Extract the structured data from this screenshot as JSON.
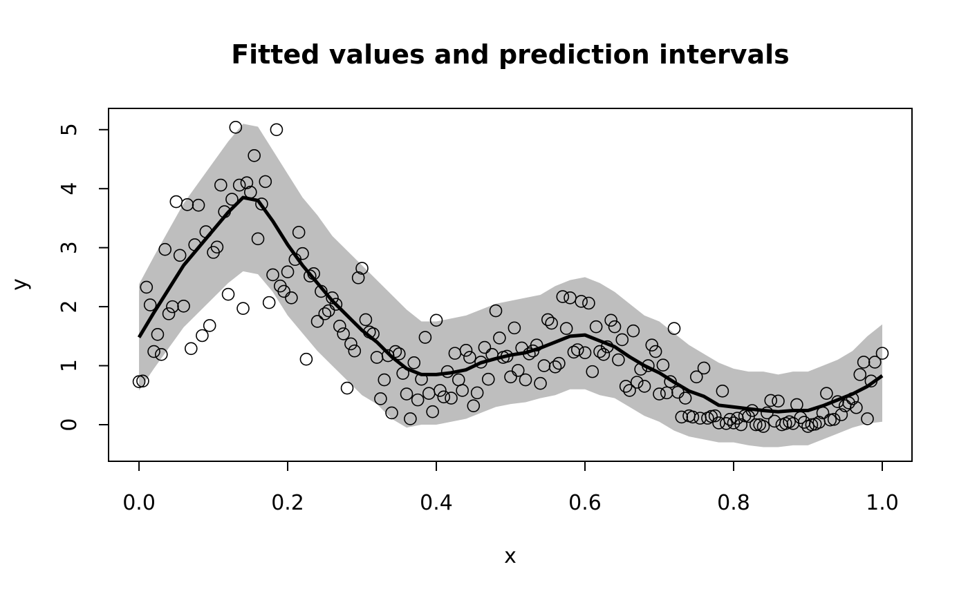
{
  "chart_data": {
    "type": "scatter",
    "title": "Fitted values and prediction intervals",
    "xlabel": "x",
    "ylabel": "y",
    "xlim": [
      -0.041,
      1.04
    ],
    "ylim": [
      -0.62,
      5.36
    ],
    "xticks": [
      {
        "value": 0,
        "label": "0.0"
      },
      0.2,
      0.4,
      0.6,
      0.8,
      {
        "value": 1,
        "label": "1.0"
      }
    ],
    "yticks": [
      0,
      1,
      2,
      3,
      4,
      5
    ],
    "band": {
      "color": "#bebebe",
      "x": [
        0,
        0.02,
        0.04,
        0.06,
        0.08,
        0.1,
        0.12,
        0.14,
        0.16,
        0.18,
        0.2,
        0.22,
        0.24,
        0.26,
        0.28,
        0.3,
        0.32,
        0.34,
        0.36,
        0.38,
        0.4,
        0.42,
        0.44,
        0.46,
        0.48,
        0.5,
        0.52,
        0.54,
        0.56,
        0.58,
        0.6,
        0.62,
        0.64,
        0.66,
        0.68,
        0.7,
        0.72,
        0.74,
        0.76,
        0.78,
        0.8,
        0.82,
        0.84,
        0.86,
        0.88,
        0.9,
        0.92,
        0.94,
        0.96,
        0.98,
        1
      ],
      "lower": [
        0.58,
        0.95,
        1.3,
        1.65,
        1.9,
        2.15,
        2.4,
        2.6,
        2.55,
        2.25,
        1.85,
        1.55,
        1.25,
        1.0,
        0.75,
        0.5,
        0.35,
        0.1,
        -0.05,
        0.0,
        0.0,
        0.05,
        0.1,
        0.2,
        0.3,
        0.35,
        0.38,
        0.45,
        0.5,
        0.6,
        0.6,
        0.5,
        0.45,
        0.3,
        0.15,
        0.05,
        -0.1,
        -0.2,
        -0.25,
        -0.3,
        -0.3,
        -0.35,
        -0.38,
        -0.38,
        -0.35,
        -0.35,
        -0.25,
        -0.15,
        -0.05,
        0.02,
        0.05
      ],
      "upper": [
        2.38,
        2.85,
        3.3,
        3.75,
        4.1,
        4.45,
        4.8,
        5.1,
        5.05,
        4.65,
        4.25,
        3.85,
        3.55,
        3.2,
        2.95,
        2.7,
        2.45,
        2.2,
        1.95,
        1.75,
        1.75,
        1.8,
        1.85,
        1.95,
        2.05,
        2.1,
        2.15,
        2.2,
        2.35,
        2.45,
        2.5,
        2.4,
        2.25,
        2.05,
        1.85,
        1.75,
        1.55,
        1.35,
        1.2,
        1.05,
        0.95,
        0.9,
        0.9,
        0.85,
        0.9,
        0.9,
        1.0,
        1.1,
        1.25,
        1.5,
        1.7
      ]
    },
    "fit": {
      "color": "#000000",
      "x": [
        0,
        0.02,
        0.04,
        0.06,
        0.08,
        0.1,
        0.12,
        0.14,
        0.16,
        0.18,
        0.2,
        0.22,
        0.24,
        0.26,
        0.28,
        0.3,
        0.32,
        0.34,
        0.36,
        0.38,
        0.4,
        0.42,
        0.44,
        0.46,
        0.48,
        0.5,
        0.52,
        0.54,
        0.56,
        0.58,
        0.6,
        0.62,
        0.64,
        0.66,
        0.68,
        0.7,
        0.72,
        0.74,
        0.76,
        0.78,
        0.8,
        0.82,
        0.84,
        0.86,
        0.88,
        0.9,
        0.92,
        0.94,
        0.96,
        0.98,
        1
      ],
      "values": [
        1.48,
        1.9,
        2.3,
        2.7,
        3.0,
        3.3,
        3.6,
        3.85,
        3.8,
        3.45,
        3.05,
        2.7,
        2.4,
        2.1,
        1.85,
        1.6,
        1.4,
        1.15,
        0.95,
        0.85,
        0.85,
        0.88,
        0.93,
        1.05,
        1.12,
        1.18,
        1.22,
        1.3,
        1.4,
        1.5,
        1.52,
        1.42,
        1.32,
        1.15,
        1.0,
        0.88,
        0.72,
        0.57,
        0.48,
        0.33,
        0.3,
        0.27,
        0.24,
        0.22,
        0.24,
        0.24,
        0.32,
        0.42,
        0.52,
        0.65,
        0.83
      ]
    },
    "points": {
      "color": "#000000",
      "x": [
        0,
        0.005,
        0.01,
        0.015,
        0.02,
        0.025,
        0.03,
        0.035,
        0.04,
        0.045,
        0.05,
        0.055,
        0.06,
        0.065,
        0.07,
        0.075,
        0.08,
        0.085,
        0.09,
        0.095,
        0.1,
        0.105,
        0.11,
        0.115,
        0.12,
        0.125,
        0.13,
        0.135,
        0.14,
        0.145,
        0.15,
        0.155,
        0.16,
        0.165,
        0.17,
        0.175,
        0.18,
        0.185,
        0.19,
        0.195,
        0.2,
        0.205,
        0.21,
        0.215,
        0.22,
        0.225,
        0.23,
        0.235,
        0.24,
        0.245,
        0.25,
        0.255,
        0.26,
        0.265,
        0.27,
        0.275,
        0.28,
        0.285,
        0.29,
        0.295,
        0.3,
        0.305,
        0.31,
        0.315,
        0.32,
        0.325,
        0.33,
        0.335,
        0.34,
        0.345,
        0.35,
        0.355,
        0.36,
        0.365,
        0.37,
        0.375,
        0.38,
        0.385,
        0.39,
        0.395,
        0.4,
        0.405,
        0.41,
        0.415,
        0.42,
        0.425,
        0.43,
        0.435,
        0.44,
        0.445,
        0.45,
        0.455,
        0.46,
        0.465,
        0.47,
        0.475,
        0.48,
        0.485,
        0.49,
        0.495,
        0.5,
        0.505,
        0.51,
        0.515,
        0.52,
        0.525,
        0.53,
        0.535,
        0.54,
        0.545,
        0.55,
        0.555,
        0.56,
        0.565,
        0.57,
        0.575,
        0.58,
        0.585,
        0.59,
        0.595,
        0.6,
        0.605,
        0.61,
        0.615,
        0.62,
        0.625,
        0.63,
        0.635,
        0.64,
        0.645,
        0.65,
        0.655,
        0.66,
        0.665,
        0.67,
        0.675,
        0.68,
        0.685,
        0.69,
        0.695,
        0.7,
        0.705,
        0.71,
        0.715,
        0.72,
        0.725,
        0.73,
        0.735,
        0.74,
        0.745,
        0.75,
        0.755,
        0.76,
        0.765,
        0.77,
        0.775,
        0.78,
        0.785,
        0.79,
        0.795,
        0.8,
        0.805,
        0.81,
        0.815,
        0.82,
        0.825,
        0.83,
        0.835,
        0.84,
        0.845,
        0.85,
        0.855,
        0.86,
        0.865,
        0.87,
        0.875,
        0.88,
        0.885,
        0.89,
        0.895,
        0.9,
        0.905,
        0.91,
        0.915,
        0.92,
        0.925,
        0.93,
        0.935,
        0.94,
        0.945,
        0.95,
        0.955,
        0.96,
        0.965,
        0.97,
        0.975,
        0.98,
        0.985,
        0.99,
        1
      ],
      "values": [
        0.73,
        0.74,
        2.33,
        2.03,
        1.24,
        1.53,
        1.19,
        2.97,
        1.88,
        2.0,
        3.78,
        2.87,
        2.01,
        3.73,
        1.29,
        3.05,
        3.72,
        1.51,
        3.27,
        1.68,
        2.92,
        3.01,
        4.06,
        3.61,
        2.21,
        3.82,
        5.04,
        4.06,
        1.97,
        4.1,
        3.94,
        4.56,
        3.15,
        3.74,
        4.12,
        2.07,
        2.54,
        5.0,
        2.35,
        2.26,
        2.59,
        2.15,
        2.8,
        3.26,
        2.9,
        1.11,
        2.52,
        2.56,
        1.75,
        2.26,
        1.88,
        1.93,
        2.15,
        2.04,
        1.67,
        1.54,
        0.62,
        1.37,
        1.25,
        2.49,
        2.65,
        1.78,
        1.57,
        1.54,
        1.14,
        0.44,
        0.76,
        1.17,
        0.2,
        1.24,
        1.2,
        0.87,
        0.52,
        0.1,
        1.05,
        0.42,
        0.77,
        1.48,
        0.53,
        0.22,
        1.77,
        0.58,
        0.47,
        0.9,
        0.45,
        1.21,
        0.76,
        0.58,
        1.26,
        1.14,
        0.32,
        0.54,
        1.06,
        1.31,
        0.77,
        1.19,
        1.93,
        1.47,
        1.14,
        1.16,
        0.81,
        1.64,
        0.92,
        1.3,
        0.76,
        1.2,
        1.25,
        1.35,
        0.7,
        1.0,
        1.78,
        1.72,
        0.98,
        1.04,
        2.17,
        1.63,
        2.15,
        1.23,
        1.27,
        2.09,
        1.22,
        2.06,
        0.9,
        1.66,
        1.24,
        1.19,
        1.32,
        1.77,
        1.66,
        1.1,
        1.44,
        0.65,
        0.58,
        1.59,
        0.72,
        0.94,
        0.65,
        1.0,
        1.35,
        1.24,
        0.52,
        1.01,
        0.54,
        0.73,
        1.63,
        0.55,
        0.13,
        0.45,
        0.15,
        0.13,
        0.81,
        0.11,
        0.96,
        0.11,
        0.14,
        0.15,
        0.03,
        0.57,
        0.02,
        0.09,
        0.03,
        0.11,
        0.0,
        0.15,
        0.14,
        0.24,
        0.0,
        0.0,
        -0.03,
        0.2,
        0.41,
        0.06,
        0.4,
        0.0,
        0.02,
        0.05,
        0.02,
        0.34,
        0.12,
        0.04,
        -0.03,
        0.0,
        0.01,
        0.04,
        0.2,
        0.53,
        0.08,
        0.09,
        0.39,
        0.17,
        0.32,
        0.37,
        0.44,
        0.29,
        0.85,
        1.06,
        0.1,
        0.74,
        1.06,
        1.21
      ]
    }
  }
}
